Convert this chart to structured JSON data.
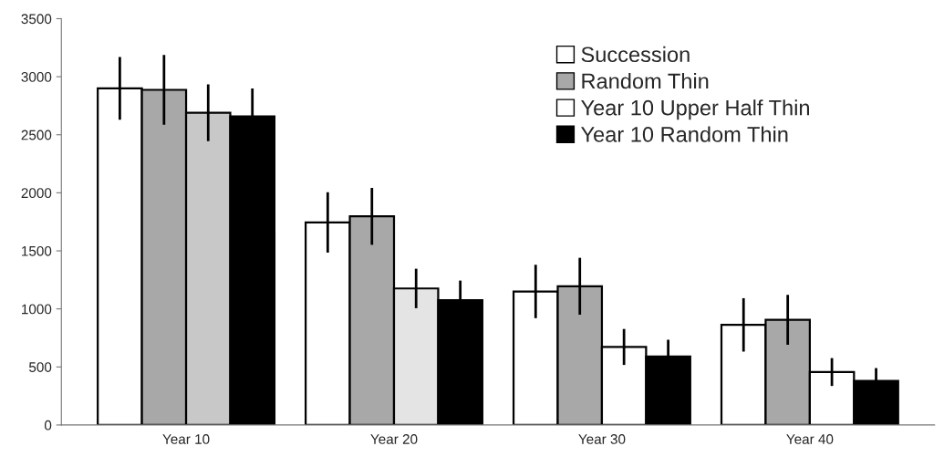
{
  "chart_data": {
    "type": "bar",
    "categories": [
      "Year 10",
      "Year 20",
      "Year 30",
      "Year 40"
    ],
    "series": [
      {
        "name": "Succession",
        "color": "#ffffff",
        "values": [
          2900,
          1745,
          1150,
          862
        ],
        "errors": [
          270,
          260,
          230,
          230
        ]
      },
      {
        "name": "Random Thin",
        "color": "#a8a8a8",
        "values": [
          2887,
          1797,
          1195,
          906
        ],
        "errors": [
          300,
          245,
          245,
          215
        ]
      },
      {
        "name": "Year 10 Upper Half Thin",
        "color": "#ffffff",
        "colors": [
          "#c8c8c8",
          "#e4e4e4",
          "#ffffff",
          "#ffffff"
        ],
        "values": [
          2690,
          1176,
          672,
          456
        ],
        "errors": [
          245,
          170,
          155,
          120
        ]
      },
      {
        "name": "Year 10 Random Thin",
        "color": "#000000",
        "values": [
          2658,
          1074,
          589,
          380
        ],
        "errors": [
          240,
          170,
          145,
          110
        ]
      }
    ],
    "ylim": [
      0,
      3500
    ],
    "yticks": [
      0,
      500,
      1000,
      1500,
      2000,
      2500,
      3000,
      3500
    ],
    "grid": false,
    "legend": "top right"
  }
}
